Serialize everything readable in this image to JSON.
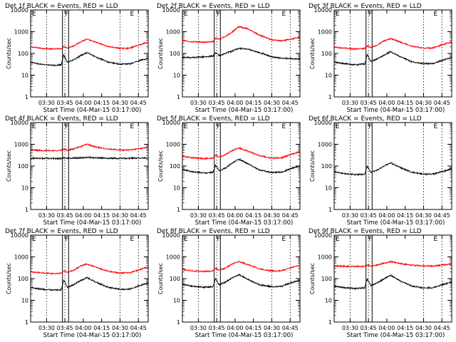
{
  "figure": {
    "xlabel": "Start Time (04-Mar-15 03:17:00)",
    "ylabel": "Counts/sec"
  },
  "colors": {
    "events": "#000000",
    "lld": "#ff0000",
    "axes": "#000000"
  },
  "chart_data": [
    {
      "type": "line",
      "title": "Det 1f BLACK = Events, RED = LLD",
      "x_ticks": [
        "03:30",
        "03:45",
        "04:00",
        "04:15",
        "04:30",
        "04:45"
      ],
      "y_ticks": [
        "1",
        "10",
        "100",
        "1000",
        "10000"
      ],
      "ylim": [
        1,
        10000
      ],
      "y_scale": "log",
      "xlim": [
        "03:17",
        "04:53"
      ],
      "markers": [
        {
          "label": "F",
          "time": "03:44"
        },
        {
          "label": "E",
          "time": "04:37"
        }
      ],
      "vertical_lines": {
        "solid": [
          "03:43",
          "03:48"
        ],
        "dotted": [
          "03:30",
          "03:45",
          "04:30",
          "04:45"
        ]
      },
      "series": [
        {
          "name": "LLD",
          "color": "red",
          "x": [
            "03:17",
            "03:25",
            "03:35",
            "03:42",
            "03:44",
            "03:47",
            "03:52",
            "03:58",
            "04:03",
            "04:10",
            "04:20",
            "04:30",
            "04:38",
            "04:45",
            "04:53"
          ],
          "values": [
            200,
            175,
            160,
            165,
            210,
            180,
            220,
            350,
            450,
            330,
            210,
            170,
            175,
            240,
            330
          ]
        },
        {
          "name": "Events",
          "color": "black",
          "x": [
            "03:17",
            "03:25",
            "03:35",
            "03:42",
            "03:44",
            "03:47",
            "03:52",
            "03:58",
            "04:03",
            "04:10",
            "04:20",
            "04:30",
            "04:38",
            "04:45",
            "04:53"
          ],
          "values": [
            40,
            32,
            28,
            30,
            85,
            40,
            50,
            80,
            110,
            70,
            40,
            32,
            33,
            45,
            60
          ]
        }
      ]
    },
    {
      "type": "line",
      "title": "Det 2f BLACK = Events, RED = LLD",
      "x_ticks": [
        "03:30",
        "03:45",
        "04:00",
        "04:15",
        "04:30",
        "04:45"
      ],
      "y_ticks": [
        "1",
        "10",
        "100",
        "1000",
        "10000"
      ],
      "ylim": [
        1,
        10000
      ],
      "y_scale": "log",
      "xlim": [
        "03:17",
        "04:53"
      ],
      "markers": [
        {
          "label": "F",
          "time": "03:44"
        },
        {
          "label": "E",
          "time": "04:37"
        }
      ],
      "vertical_lines": {
        "solid": [
          "03:43",
          "03:48"
        ],
        "dotted": [
          "03:30",
          "03:45",
          "04:30",
          "04:45"
        ]
      },
      "series": [
        {
          "name": "LLD",
          "color": "red",
          "x": [
            "03:17",
            "03:25",
            "03:35",
            "03:42",
            "03:44",
            "03:47",
            "03:52",
            "03:58",
            "04:03",
            "04:10",
            "04:20",
            "04:30",
            "04:38",
            "04:45",
            "04:53"
          ],
          "values": [
            400,
            340,
            330,
            350,
            500,
            450,
            600,
            1000,
            1700,
            1400,
            700,
            420,
            380,
            450,
            550
          ]
        },
        {
          "name": "Events",
          "color": "black",
          "x": [
            "03:17",
            "03:25",
            "03:35",
            "03:42",
            "03:44",
            "03:47",
            "03:52",
            "03:58",
            "04:03",
            "04:10",
            "04:20",
            "04:30",
            "04:38",
            "04:45",
            "04:53"
          ],
          "values": [
            65,
            65,
            70,
            75,
            110,
            80,
            100,
            130,
            170,
            160,
            110,
            70,
            60,
            58,
            55
          ]
        }
      ]
    },
    {
      "type": "line",
      "title": "Det 3f BLACK = Events, RED = LLD",
      "x_ticks": [
        "03:30",
        "03:45",
        "04:00",
        "04:15",
        "04:30",
        "04:45"
      ],
      "y_ticks": [
        "1",
        "10",
        "100",
        "1000",
        "10000"
      ],
      "ylim": [
        1,
        10000
      ],
      "y_scale": "log",
      "xlim": [
        "03:17",
        "04:53"
      ],
      "markers": [
        {
          "label": "F",
          "time": "03:44"
        },
        {
          "label": "E",
          "time": "04:37"
        }
      ],
      "vertical_lines": {
        "solid": [
          "03:43",
          "03:48"
        ],
        "dotted": [
          "03:30",
          "03:45",
          "04:30",
          "04:45"
        ]
      },
      "series": [
        {
          "name": "LLD",
          "color": "red",
          "x": [
            "03:17",
            "03:25",
            "03:35",
            "03:42",
            "03:44",
            "03:47",
            "03:52",
            "03:58",
            "04:03",
            "04:10",
            "04:20",
            "04:30",
            "04:38",
            "04:45",
            "04:53"
          ],
          "values": [
            200,
            175,
            160,
            170,
            220,
            190,
            240,
            380,
            480,
            350,
            220,
            175,
            180,
            250,
            340
          ]
        },
        {
          "name": "Events",
          "color": "black",
          "x": [
            "03:17",
            "03:25",
            "03:35",
            "03:42",
            "03:44",
            "03:47",
            "03:52",
            "03:58",
            "04:03",
            "04:10",
            "04:20",
            "04:30",
            "04:38",
            "04:45",
            "04:53"
          ],
          "values": [
            40,
            34,
            30,
            33,
            90,
            42,
            55,
            85,
            120,
            75,
            42,
            34,
            34,
            48,
            65
          ]
        }
      ]
    },
    {
      "type": "line",
      "title": "Det 4f BLACK = Events, RED = LLD",
      "x_ticks": [
        "03:30",
        "03:45",
        "04:00",
        "04:15",
        "04:30",
        "04:45"
      ],
      "y_ticks": [
        "1",
        "10",
        "100",
        "1000",
        "10000"
      ],
      "ylim": [
        1,
        10000
      ],
      "y_scale": "log",
      "xlim": [
        "03:17",
        "04:53"
      ],
      "markers": [
        {
          "label": "F",
          "time": "03:44"
        },
        {
          "label": "E",
          "time": "04:37"
        }
      ],
      "vertical_lines": {
        "solid": [
          "03:43",
          "03:48"
        ],
        "dotted": [
          "03:30",
          "03:45",
          "04:30",
          "04:45"
        ]
      },
      "series": [
        {
          "name": "LLD",
          "color": "red",
          "x": [
            "03:17",
            "03:25",
            "03:35",
            "03:42",
            "03:44",
            "03:47",
            "03:52",
            "03:58",
            "04:03",
            "04:10",
            "04:20",
            "04:30",
            "04:38",
            "04:45",
            "04:53"
          ],
          "values": [
            550,
            520,
            510,
            520,
            600,
            540,
            600,
            800,
            1000,
            750,
            600,
            540,
            550,
            620,
            720
          ]
        },
        {
          "name": "Events",
          "color": "black",
          "x": [
            "03:17",
            "03:25",
            "03:35",
            "03:42",
            "03:44",
            "03:47",
            "03:52",
            "03:58",
            "04:03",
            "04:10",
            "04:20",
            "04:30",
            "04:38",
            "04:45",
            "04:53"
          ],
          "values": [
            230,
            225,
            220,
            222,
            240,
            228,
            232,
            240,
            250,
            238,
            228,
            225,
            226,
            232,
            238
          ]
        }
      ]
    },
    {
      "type": "line",
      "title": "Det 5f BLACK = Events, RED = LLD",
      "x_ticks": [
        "03:30",
        "03:45",
        "04:00",
        "04:15",
        "04:30",
        "04:45"
      ],
      "y_ticks": [
        "1",
        "10",
        "100",
        "1000",
        "10000"
      ],
      "ylim": [
        1,
        10000
      ],
      "y_scale": "log",
      "xlim": [
        "03:17",
        "04:53"
      ],
      "markers": [
        {
          "label": "F",
          "time": "03:44"
        },
        {
          "label": "E",
          "time": "04:37"
        }
      ],
      "vertical_lines": {
        "solid": [
          "03:43",
          "03:48"
        ],
        "dotted": [
          "03:30",
          "03:45",
          "04:30",
          "04:45"
        ]
      },
      "series": [
        {
          "name": "LLD",
          "color": "red",
          "x": [
            "03:17",
            "03:25",
            "03:35",
            "03:42",
            "03:44",
            "03:47",
            "03:52",
            "03:58",
            "04:03",
            "04:10",
            "04:20",
            "04:30",
            "04:38",
            "04:45",
            "04:53"
          ],
          "values": [
            280,
            240,
            220,
            230,
            320,
            260,
            330,
            520,
            680,
            500,
            300,
            230,
            240,
            330,
            460
          ]
        },
        {
          "name": "Events",
          "color": "black",
          "x": [
            "03:17",
            "03:25",
            "03:35",
            "03:42",
            "03:44",
            "03:47",
            "03:52",
            "03:58",
            "04:03",
            "04:10",
            "04:20",
            "04:30",
            "04:38",
            "04:45",
            "04:53"
          ],
          "values": [
            70,
            55,
            48,
            52,
            110,
            60,
            80,
            140,
            210,
            130,
            65,
            50,
            52,
            75,
            100
          ]
        }
      ]
    },
    {
      "type": "line",
      "title": "Det 6f BLACK = Events, RED = LLD",
      "x_ticks": [
        "03:30",
        "03:45",
        "04:00",
        "04:15",
        "04:30",
        "04:45"
      ],
      "y_ticks": [
        "1",
        "10",
        "100",
        "1000",
        "10000"
      ],
      "ylim": [
        1,
        10000
      ],
      "y_scale": "log",
      "xlim": [
        "03:17",
        "04:53"
      ],
      "markers": [
        {
          "label": "F",
          "time": "03:44"
        },
        {
          "label": "E",
          "time": "04:37"
        }
      ],
      "vertical_lines": {
        "solid": [
          "03:43",
          "03:48"
        ],
        "dotted": [
          "03:30",
          "03:45",
          "04:30",
          "04:45"
        ]
      },
      "series": [
        {
          "name": "Events",
          "color": "black",
          "x": [
            "03:17",
            "03:25",
            "03:35",
            "03:42",
            "03:44",
            "03:47",
            "03:52",
            "03:58",
            "04:03",
            "04:10",
            "04:20",
            "04:30",
            "04:38",
            "04:45",
            "04:53"
          ],
          "values": [
            55,
            45,
            40,
            42,
            100,
            50,
            65,
            100,
            140,
            90,
            52,
            42,
            43,
            55,
            75
          ]
        }
      ]
    },
    {
      "type": "line",
      "title": "Det 7f BLACK = Events, RED = LLD",
      "x_ticks": [
        "03:30",
        "03:45",
        "04:00",
        "04:15",
        "04:30",
        "04:45"
      ],
      "y_ticks": [
        "1",
        "10",
        "100",
        "1000",
        "10000"
      ],
      "ylim": [
        1,
        10000
      ],
      "y_scale": "log",
      "xlim": [
        "03:17",
        "04:53"
      ],
      "markers": [
        {
          "label": "F",
          "time": "03:44"
        },
        {
          "label": "E",
          "time": "04:37"
        }
      ],
      "vertical_lines": {
        "solid": [
          "03:43",
          "03:48"
        ],
        "dotted": [
          "03:30",
          "03:45",
          "04:30",
          "04:45"
        ]
      },
      "series": [
        {
          "name": "LLD",
          "color": "red",
          "x": [
            "03:17",
            "03:25",
            "03:35",
            "03:42",
            "03:44",
            "03:47",
            "03:52",
            "03:58",
            "04:03",
            "04:10",
            "04:20",
            "04:30",
            "04:38",
            "04:45",
            "04:53"
          ],
          "values": [
            210,
            185,
            170,
            175,
            230,
            195,
            240,
            380,
            470,
            340,
            220,
            180,
            185,
            250,
            340
          ]
        },
        {
          "name": "Events",
          "color": "black",
          "x": [
            "03:17",
            "03:25",
            "03:35",
            "03:42",
            "03:44",
            "03:47",
            "03:52",
            "03:58",
            "04:03",
            "04:10",
            "04:20",
            "04:30",
            "04:38",
            "04:45",
            "04:53"
          ],
          "values": [
            40,
            33,
            29,
            31,
            85,
            40,
            52,
            82,
            110,
            70,
            40,
            32,
            33,
            46,
            62
          ]
        }
      ]
    },
    {
      "type": "line",
      "title": "Det 8f BLACK = Events, RED = LLD",
      "x_ticks": [
        "03:30",
        "03:45",
        "04:00",
        "04:15",
        "04:30",
        "04:45"
      ],
      "y_ticks": [
        "1",
        "10",
        "100",
        "1000",
        "10000"
      ],
      "ylim": [
        1,
        10000
      ],
      "y_scale": "log",
      "xlim": [
        "03:17",
        "04:53"
      ],
      "markers": [
        {
          "label": "F",
          "time": "03:44"
        },
        {
          "label": "E",
          "time": "04:37"
        }
      ],
      "vertical_lines": {
        "solid": [
          "03:43",
          "03:48"
        ],
        "dotted": [
          "03:30",
          "03:45",
          "04:30",
          "04:45"
        ]
      },
      "series": [
        {
          "name": "LLD",
          "color": "red",
          "x": [
            "03:17",
            "03:25",
            "03:35",
            "03:42",
            "03:44",
            "03:47",
            "03:52",
            "03:58",
            "04:03",
            "04:10",
            "04:20",
            "04:30",
            "04:38",
            "04:45",
            "04:53"
          ],
          "values": [
            260,
            230,
            215,
            220,
            300,
            245,
            300,
            480,
            620,
            450,
            280,
            225,
            230,
            310,
            400
          ]
        },
        {
          "name": "Events",
          "color": "black",
          "x": [
            "03:17",
            "03:25",
            "03:35",
            "03:42",
            "03:44",
            "03:47",
            "03:52",
            "03:58",
            "04:03",
            "04:10",
            "04:20",
            "04:30",
            "04:38",
            "04:45",
            "04:53"
          ],
          "values": [
            55,
            45,
            40,
            43,
            100,
            52,
            68,
            110,
            150,
            95,
            52,
            42,
            44,
            62,
            85
          ]
        }
      ]
    },
    {
      "type": "line",
      "title": "Det 9f BLACK = Events, RED = LLD",
      "x_ticks": [
        "03:30",
        "03:45",
        "04:00",
        "04:15",
        "04:30",
        "04:45"
      ],
      "y_ticks": [
        "1",
        "10",
        "100",
        "1000",
        "10000"
      ],
      "ylim": [
        1,
        10000
      ],
      "y_scale": "log",
      "xlim": [
        "03:17",
        "04:53"
      ],
      "markers": [
        {
          "label": "F",
          "time": "03:44"
        },
        {
          "label": "E",
          "time": "04:37"
        }
      ],
      "vertical_lines": {
        "solid": [
          "03:43",
          "03:48"
        ],
        "dotted": [
          "03:30",
          "03:45",
          "04:30",
          "04:45"
        ]
      },
      "series": [
        {
          "name": "LLD",
          "color": "red",
          "x": [
            "03:17",
            "03:25",
            "03:35",
            "03:42",
            "03:44",
            "03:47",
            "03:52",
            "03:58",
            "04:03",
            "04:10",
            "04:20",
            "04:30",
            "04:38",
            "04:45",
            "04:53"
          ],
          "values": [
            380,
            370,
            360,
            365,
            420,
            380,
            420,
            520,
            600,
            500,
            420,
            380,
            380,
            420,
            470
          ]
        },
        {
          "name": "Events",
          "color": "black",
          "x": [
            "03:17",
            "03:25",
            "03:35",
            "03:42",
            "03:44",
            "03:47",
            "03:52",
            "03:58",
            "04:03",
            "04:10",
            "04:20",
            "04:30",
            "04:38",
            "04:45",
            "04:53"
          ],
          "values": [
            45,
            38,
            35,
            38,
            95,
            48,
            62,
            100,
            140,
            85,
            46,
            37,
            38,
            52,
            70
          ]
        }
      ]
    }
  ]
}
